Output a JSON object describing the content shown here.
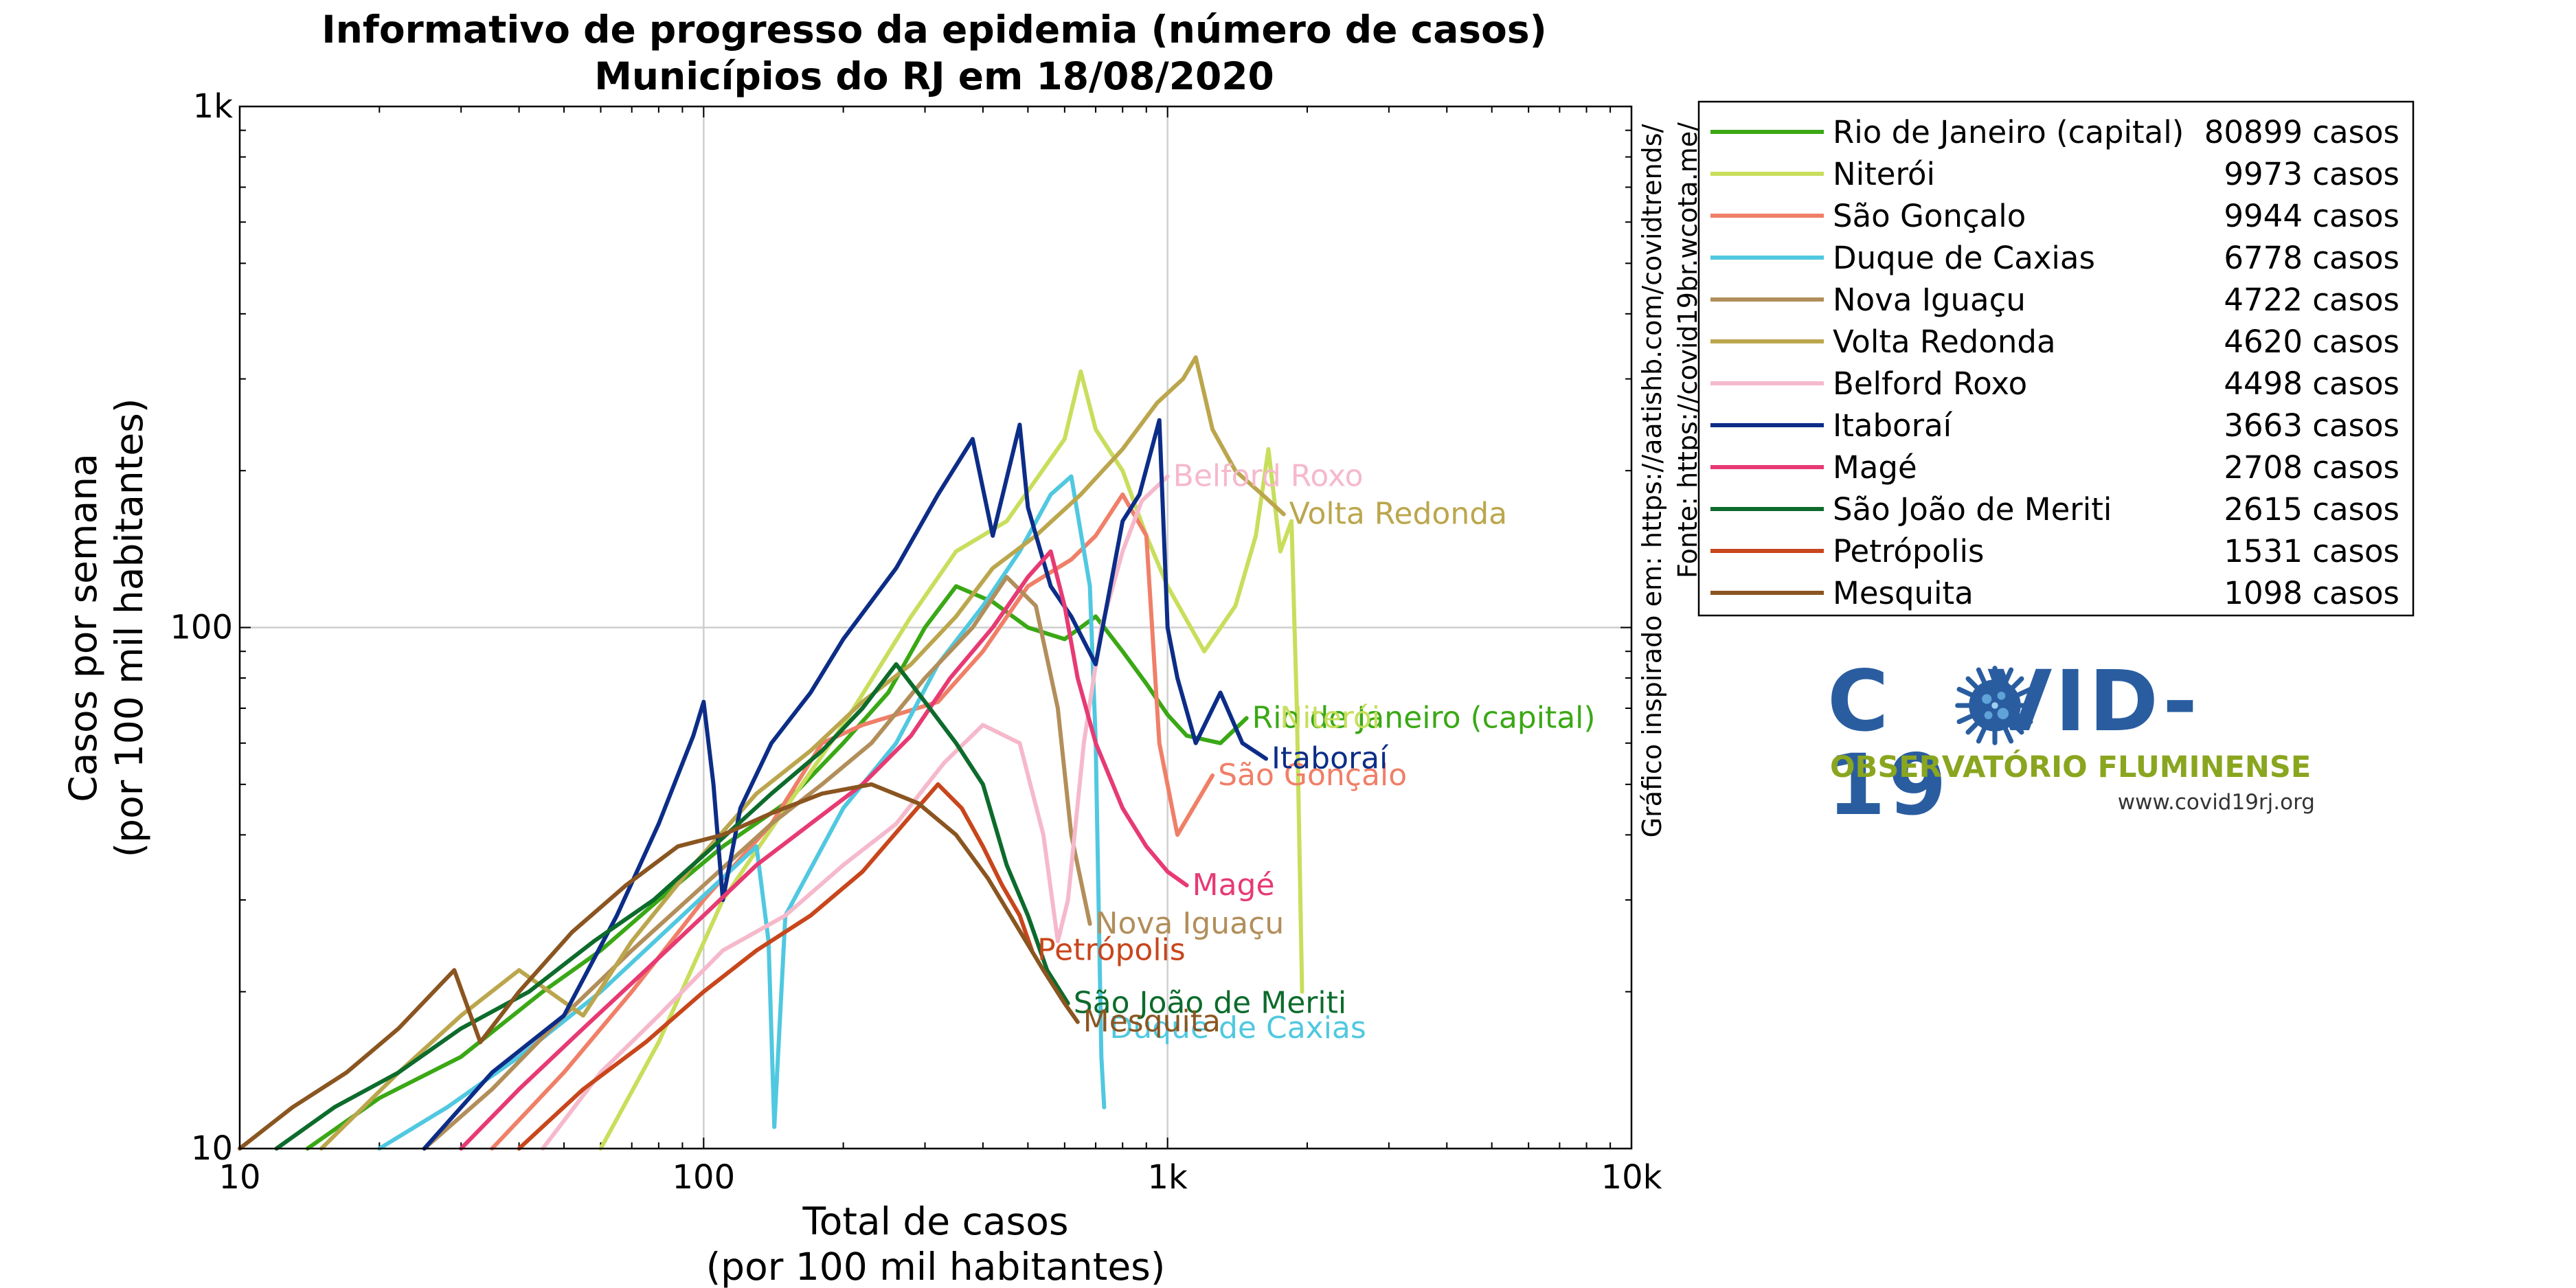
{
  "chart_data": {
    "type": "line",
    "title": [
      "Informativo de progresso da epidemia (número de casos)",
      "Municípios do RJ em 18/08/2020"
    ],
    "xlabel": [
      "Total de casos",
      "(por 100 mil habitantes)"
    ],
    "ylabel": [
      "Casos por semana",
      "(por 100 mil habitantes)"
    ],
    "xscale": "log",
    "yscale": "log",
    "xlim": [
      10,
      10000
    ],
    "ylim": [
      10,
      1000
    ],
    "xticks": [
      {
        "value": 10,
        "label": "10"
      },
      {
        "value": 100,
        "label": "100"
      },
      {
        "value": 1000,
        "label": "1k"
      },
      {
        "value": 10000,
        "label": "10k"
      }
    ],
    "yticks": [
      {
        "value": 10,
        "label": "10"
      },
      {
        "value": 100,
        "label": "100"
      },
      {
        "value": 1000,
        "label": "1k"
      }
    ],
    "grid": true,
    "legend_position": "outside-right",
    "source_note": [
      "Gráfico inspirado em: https://aatishb.com/covidtrends/",
      "Fonte: https://covid19br.wcota.me/"
    ],
    "series": [
      {
        "name": "Rio de Janeiro (capital)",
        "total": "80899 casos",
        "color": "#3aa815",
        "label_at": [
          1480,
          67
        ],
        "points": [
          [
            14,
            10
          ],
          [
            20,
            12.5
          ],
          [
            30,
            15
          ],
          [
            45,
            20
          ],
          [
            60,
            24
          ],
          [
            80,
            30
          ],
          [
            110,
            38
          ],
          [
            150,
            46
          ],
          [
            200,
            60
          ],
          [
            250,
            75
          ],
          [
            300,
            100
          ],
          [
            350,
            120
          ],
          [
            420,
            112
          ],
          [
            500,
            100
          ],
          [
            600,
            95
          ],
          [
            700,
            105
          ],
          [
            800,
            90
          ],
          [
            900,
            78
          ],
          [
            1000,
            68
          ],
          [
            1100,
            62
          ],
          [
            1300,
            60
          ],
          [
            1480,
            67
          ]
        ]
      },
      {
        "name": "Niterói",
        "total": "9973 casos",
        "color": "#c8de5c",
        "label_at": [
          1700,
          67
        ],
        "points": [
          [
            60,
            10
          ],
          [
            80,
            16
          ],
          [
            110,
            30
          ],
          [
            150,
            45
          ],
          [
            200,
            65
          ],
          [
            280,
            105
          ],
          [
            350,
            140
          ],
          [
            450,
            160
          ],
          [
            600,
            230
          ],
          [
            650,
            310
          ],
          [
            700,
            240
          ],
          [
            800,
            200
          ],
          [
            900,
            150
          ],
          [
            1000,
            120
          ],
          [
            1200,
            90
          ],
          [
            1400,
            110
          ],
          [
            1550,
            150
          ],
          [
            1650,
            220
          ],
          [
            1750,
            140
          ],
          [
            1850,
            160
          ],
          [
            1900,
            70
          ],
          [
            1950,
            20
          ]
        ]
      },
      {
        "name": "São Gonçalo",
        "total": "9944 casos",
        "color": "#f07f68",
        "label_at": [
          1250,
          52
        ],
        "points": [
          [
            35,
            10
          ],
          [
            50,
            14
          ],
          [
            70,
            20
          ],
          [
            100,
            30
          ],
          [
            140,
            42
          ],
          [
            180,
            60
          ],
          [
            220,
            65
          ],
          [
            260,
            68
          ],
          [
            320,
            72
          ],
          [
            400,
            90
          ],
          [
            500,
            120
          ],
          [
            620,
            135
          ],
          [
            700,
            150
          ],
          [
            800,
            180
          ],
          [
            900,
            150
          ],
          [
            960,
            60
          ],
          [
            1050,
            40
          ],
          [
            1250,
            52
          ]
        ]
      },
      {
        "name": "Duque de Caxias",
        "total": "6778 casos",
        "color": "#50c8e0",
        "label_at": [
          730,
          17
        ],
        "points": [
          [
            20,
            10
          ],
          [
            28,
            12
          ],
          [
            40,
            15
          ],
          [
            60,
            20
          ],
          [
            90,
            28
          ],
          [
            130,
            38
          ],
          [
            138,
            25
          ],
          [
            142,
            11
          ],
          [
            150,
            28
          ],
          [
            200,
            45
          ],
          [
            260,
            60
          ],
          [
            320,
            85
          ],
          [
            400,
            110
          ],
          [
            480,
            140
          ],
          [
            560,
            180
          ],
          [
            620,
            195
          ],
          [
            680,
            120
          ],
          [
            700,
            60
          ],
          [
            720,
            15
          ],
          [
            730,
            12
          ]
        ]
      },
      {
        "name": "Nova Iguaçu",
        "total": "4722 casos",
        "color": "#b28e5a",
        "label_at": [
          680,
          27
        ],
        "points": [
          [
            25,
            10
          ],
          [
            35,
            13
          ],
          [
            50,
            18
          ],
          [
            70,
            24
          ],
          [
            100,
            32
          ],
          [
            140,
            42
          ],
          [
            180,
            50
          ],
          [
            230,
            60
          ],
          [
            300,
            80
          ],
          [
            380,
            100
          ],
          [
            450,
            125
          ],
          [
            520,
            110
          ],
          [
            580,
            70
          ],
          [
            620,
            40
          ],
          [
            680,
            27
          ]
        ]
      },
      {
        "name": "Volta Redonda",
        "total": "4620 casos",
        "color": "#bba64d",
        "label_at": [
          1780,
          165
        ],
        "points": [
          [
            15,
            10
          ],
          [
            22,
            14
          ],
          [
            30,
            18
          ],
          [
            40,
            22
          ],
          [
            55,
            18
          ],
          [
            70,
            25
          ],
          [
            95,
            35
          ],
          [
            130,
            48
          ],
          [
            170,
            58
          ],
          [
            220,
            72
          ],
          [
            280,
            85
          ],
          [
            350,
            105
          ],
          [
            420,
            130
          ],
          [
            520,
            150
          ],
          [
            650,
            180
          ],
          [
            800,
            220
          ],
          [
            950,
            270
          ],
          [
            1080,
            300
          ],
          [
            1150,
            330
          ],
          [
            1250,
            240
          ],
          [
            1400,
            200
          ],
          [
            1600,
            180
          ],
          [
            1780,
            165
          ]
        ]
      },
      {
        "name": "Belford Roxo",
        "total": "4498 casos",
        "color": "#f5b9cb",
        "label_at": [
          1000,
          195
        ],
        "points": [
          [
            45,
            10
          ],
          [
            60,
            14
          ],
          [
            80,
            18
          ],
          [
            110,
            24
          ],
          [
            150,
            28
          ],
          [
            200,
            35
          ],
          [
            260,
            42
          ],
          [
            330,
            55
          ],
          [
            400,
            65
          ],
          [
            480,
            60
          ],
          [
            540,
            40
          ],
          [
            580,
            25
          ],
          [
            610,
            30
          ],
          [
            660,
            60
          ],
          [
            720,
            100
          ],
          [
            800,
            140
          ],
          [
            880,
            175
          ],
          [
            1000,
            195
          ]
        ]
      },
      {
        "name": "Itaboraí",
        "total": "3663 casos",
        "color": "#0c2d87",
        "label_at": [
          1630,
          56
        ],
        "points": [
          [
            25,
            10
          ],
          [
            35,
            14
          ],
          [
            50,
            18
          ],
          [
            65,
            28
          ],
          [
            80,
            42
          ],
          [
            95,
            62
          ],
          [
            100,
            72
          ],
          [
            105,
            50
          ],
          [
            110,
            30
          ],
          [
            120,
            45
          ],
          [
            140,
            60
          ],
          [
            170,
            75
          ],
          [
            200,
            95
          ],
          [
            260,
            130
          ],
          [
            320,
            180
          ],
          [
            380,
            230
          ],
          [
            420,
            150
          ],
          [
            480,
            245
          ],
          [
            500,
            170
          ],
          [
            560,
            120
          ],
          [
            620,
            105
          ],
          [
            700,
            85
          ],
          [
            800,
            160
          ],
          [
            870,
            180
          ],
          [
            960,
            250
          ],
          [
            1000,
            100
          ],
          [
            1050,
            80
          ],
          [
            1150,
            60
          ],
          [
            1300,
            75
          ],
          [
            1450,
            60
          ],
          [
            1630,
            56
          ]
        ]
      },
      {
        "name": "Magé",
        "total": "2708 casos",
        "color": "#e73a73",
        "label_at": [
          1100,
          32
        ],
        "points": [
          [
            30,
            10
          ],
          [
            40,
            13
          ],
          [
            55,
            17
          ],
          [
            75,
            22
          ],
          [
            100,
            28
          ],
          [
            130,
            35
          ],
          [
            170,
            42
          ],
          [
            220,
            50
          ],
          [
            280,
            62
          ],
          [
            340,
            80
          ],
          [
            420,
            100
          ],
          [
            500,
            125
          ],
          [
            560,
            140
          ],
          [
            600,
            110
          ],
          [
            640,
            80
          ],
          [
            700,
            60
          ],
          [
            800,
            45
          ],
          [
            900,
            38
          ],
          [
            1000,
            34
          ],
          [
            1100,
            32
          ]
        ]
      },
      {
        "name": "São João de Meriti",
        "total": "2615 casos",
        "color": "#0d6b2c",
        "label_at": [
          610,
          19
        ],
        "points": [
          [
            12,
            10
          ],
          [
            16,
            12
          ],
          [
            22,
            14
          ],
          [
            30,
            17
          ],
          [
            42,
            20
          ],
          [
            58,
            25
          ],
          [
            78,
            30
          ],
          [
            105,
            38
          ],
          [
            140,
            48
          ],
          [
            180,
            58
          ],
          [
            220,
            70
          ],
          [
            260,
            85
          ],
          [
            300,
            72
          ],
          [
            350,
            60
          ],
          [
            400,
            50
          ],
          [
            450,
            35
          ],
          [
            500,
            28
          ],
          [
            550,
            22
          ],
          [
            610,
            19
          ]
        ]
      },
      {
        "name": "Petrópolis",
        "total": "1531 casos",
        "color": "#c8461c",
        "label_at": [
          510,
          24
        ],
        "points": [
          [
            40,
            10
          ],
          [
            55,
            13
          ],
          [
            75,
            16
          ],
          [
            100,
            20
          ],
          [
            130,
            24
          ],
          [
            170,
            28
          ],
          [
            220,
            34
          ],
          [
            270,
            42
          ],
          [
            320,
            50
          ],
          [
            360,
            45
          ],
          [
            400,
            38
          ],
          [
            440,
            32
          ],
          [
            480,
            28
          ],
          [
            510,
            24
          ]
        ]
      },
      {
        "name": "Mesquita",
        "total": "1098 casos",
        "color": "#8a5520",
        "label_at": [
          640,
          17.5
        ],
        "points": [
          [
            10,
            10
          ],
          [
            13,
            12
          ],
          [
            17,
            14
          ],
          [
            22,
            17
          ],
          [
            29,
            22
          ],
          [
            33,
            16
          ],
          [
            40,
            20
          ],
          [
            52,
            26
          ],
          [
            68,
            32
          ],
          [
            88,
            38
          ],
          [
            110,
            40
          ],
          [
            140,
            44
          ],
          [
            180,
            48
          ],
          [
            230,
            50
          ],
          [
            290,
            46
          ],
          [
            350,
            40
          ],
          [
            410,
            33
          ],
          [
            470,
            27
          ],
          [
            540,
            22
          ],
          [
            600,
            19
          ],
          [
            640,
            17.5
          ]
        ]
      }
    ]
  }
}
